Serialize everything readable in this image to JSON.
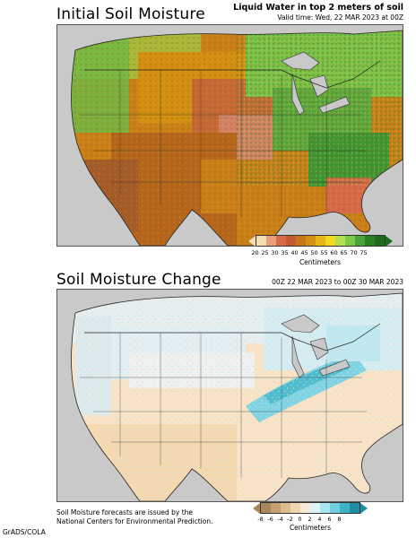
{
  "panel1": {
    "title": "Initial Soil Moisture",
    "header_right": "Liquid Water in top 2 meters of soil",
    "valid_time": "Valid time: Wed, 22 MAR 2023 at 00Z",
    "colorbar": {
      "ticks": [
        "20",
        "25",
        "30",
        "35",
        "40",
        "45",
        "50",
        "55",
        "60",
        "65",
        "70",
        "75"
      ],
      "unit": "Centimeters",
      "colors": [
        "#f4dcb4",
        "#e8a07a",
        "#d76a4a",
        "#c55a2f",
        "#c7741b",
        "#d38f12",
        "#e7b517",
        "#f2da24",
        "#b5dd4d",
        "#7dc94a",
        "#4aa33a",
        "#2a7f27",
        "#1f6b1d"
      ]
    }
  },
  "panel2": {
    "title": "Soil Moisture Change",
    "date_range": "00Z 22 MAR 2023 to 00Z 30 MAR 2023",
    "colorbar": {
      "ticks": [
        "-8",
        "-6",
        "-4",
        "-2",
        "0",
        "2",
        "4",
        "6",
        "8"
      ],
      "unit": "Centimeters",
      "colors": [
        "#a8875a",
        "#c6a070",
        "#ddbd8e",
        "#eed6b2",
        "#f8ead6",
        "#e0f4f8",
        "#a7e7f2",
        "#70cfe1",
        "#3fb3c6",
        "#1f8ea3"
      ]
    }
  },
  "footer": {
    "note_line1": "Soil Moisture forecasts are issued by the",
    "note_line2": "National Centers for Environmental Prediction.",
    "credit": "GrADS/COLA"
  }
}
